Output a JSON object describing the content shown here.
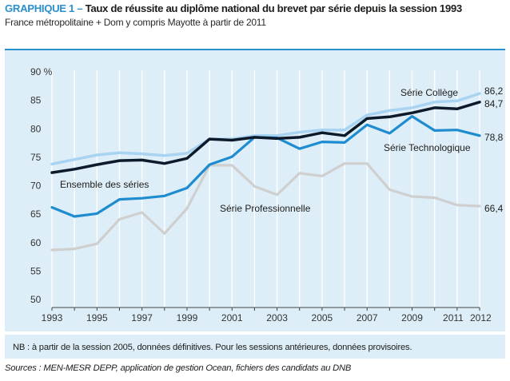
{
  "header": {
    "prefix": "GRAPHIQUE 1 –",
    "title": "Taux de réussite au diplôme national du brevet par série depuis la session 1993",
    "subtitle": "France métropolitaine + Dom y compris Mayotte à partir de 2011"
  },
  "note": "NB : à partir de la session 2005, données définitives. Pour les sessions antérieures, données provisoires.",
  "sources": "Sources : MEN-MESR DEPP, application de gestion Ocean, fichiers des candidats au DNB",
  "colors": {
    "college": "#a9d4f1",
    "technologique": "#1e8ccf",
    "ensemble": "#0d1a2c",
    "professionnelle": "#cfcfcf",
    "accent": "#2a8fce",
    "background": "#ddeef8"
  },
  "chart_data": {
    "type": "line",
    "title": "Taux de réussite au diplôme national du brevet par série depuis la session 1993",
    "ylabel": "90 %",
    "ylim": [
      50,
      90
    ],
    "grid": "vertical",
    "x": [
      1993,
      1994,
      1995,
      1996,
      1997,
      1998,
      1999,
      2000,
      2001,
      2002,
      2003,
      2004,
      2005,
      2006,
      2007,
      2008,
      2009,
      2010,
      2011,
      2012
    ],
    "x_tick_labels": [
      "1993",
      "1995",
      "1997",
      "1999",
      "2001",
      "2003",
      "2005",
      "2007",
      "2009",
      "2011",
      "2012"
    ],
    "y_tick_labels": [
      "90 %",
      "85",
      "80",
      "75",
      "70",
      "65",
      "60",
      "55",
      "50"
    ],
    "series": [
      {
        "name": "Série Collège",
        "color_key": "college",
        "values": [
          73.8,
          74.6,
          75.4,
          75.8,
          75.6,
          75.3,
          75.7,
          78.2,
          78.2,
          78.8,
          78.8,
          79.4,
          79.8,
          79.8,
          82.4,
          83.2,
          83.7,
          84.7,
          84.9,
          86.2
        ],
        "end_label": "86,2"
      },
      {
        "name": "Série Technologique",
        "color_key": "technologique",
        "values": [
          66.2,
          64.6,
          65.1,
          67.6,
          67.8,
          68.2,
          69.6,
          73.7,
          75.1,
          78.5,
          78.4,
          76.5,
          77.7,
          77.6,
          80.7,
          79.2,
          82.2,
          79.7,
          79.8,
          78.8
        ],
        "end_label": "78,8"
      },
      {
        "name": "Ensemble des séries",
        "color_key": "ensemble",
        "values": [
          72.3,
          72.9,
          73.7,
          74.4,
          74.5,
          73.9,
          74.8,
          78.2,
          78.0,
          78.5,
          78.3,
          78.5,
          79.3,
          78.8,
          81.8,
          82.1,
          82.8,
          83.7,
          83.5,
          84.7
        ],
        "end_label": "84,7"
      },
      {
        "name": "Série Professionnelle",
        "color_key": "professionnelle",
        "values": [
          58.7,
          58.9,
          59.8,
          64.1,
          65.3,
          61.6,
          66.0,
          73.6,
          73.6,
          69.9,
          68.4,
          72.2,
          71.7,
          73.9,
          73.9,
          69.3,
          68.1,
          67.9,
          66.6,
          66.4
        ],
        "end_label": "66,4"
      }
    ]
  }
}
